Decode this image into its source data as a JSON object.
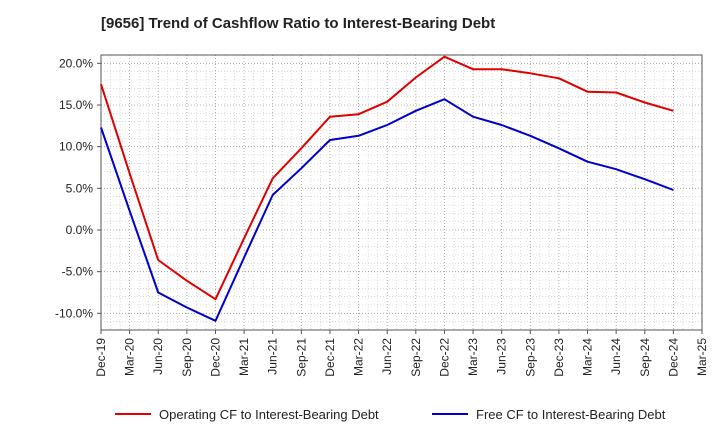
{
  "chart_data": {
    "type": "line",
    "title": "[9656]  Trend of Cashflow Ratio to Interest-Bearing Debt",
    "xlabel": "",
    "ylabel": "",
    "x": [
      "Dec-19",
      "Mar-20",
      "Jun-20",
      "Sep-20",
      "Dec-20",
      "Mar-21",
      "Jun-21",
      "Sep-21",
      "Dec-21",
      "Mar-22",
      "Jun-22",
      "Sep-22",
      "Dec-22",
      "Mar-23",
      "Jun-23",
      "Sep-23",
      "Dec-23",
      "Mar-24",
      "Jun-24",
      "Sep-24",
      "Dec-24",
      "Mar-25"
    ],
    "ylim": [
      -12,
      21
    ],
    "yticks": [
      -10,
      -5,
      0,
      5,
      10,
      15,
      20
    ],
    "ytick_labels": [
      "-10.0%",
      "-5.0%",
      "0.0%",
      "5.0%",
      "10.0%",
      "15.0%",
      "20.0%"
    ],
    "grid": true,
    "legend_position": "bottom",
    "series": [
      {
        "name": "Operating CF to Interest-Bearing Debt",
        "color": "#e00000",
        "values": [
          17.5,
          6.8,
          -3.6,
          -6.1,
          -8.3,
          -1.0,
          6.2,
          9.8,
          13.6,
          13.9,
          15.4,
          18.3,
          20.8,
          19.3,
          19.3,
          18.8,
          18.2,
          16.6,
          16.5,
          15.3,
          14.3,
          null
        ]
      },
      {
        "name": "Free CF to Interest-Bearing Debt",
        "color": "#0000cc",
        "values": [
          12.3,
          2.3,
          -7.5,
          -9.3,
          -10.9,
          -3.3,
          4.2,
          7.4,
          10.8,
          11.3,
          12.6,
          14.3,
          15.7,
          13.6,
          12.6,
          11.3,
          9.8,
          8.2,
          7.3,
          6.1,
          4.8,
          null
        ]
      }
    ]
  }
}
